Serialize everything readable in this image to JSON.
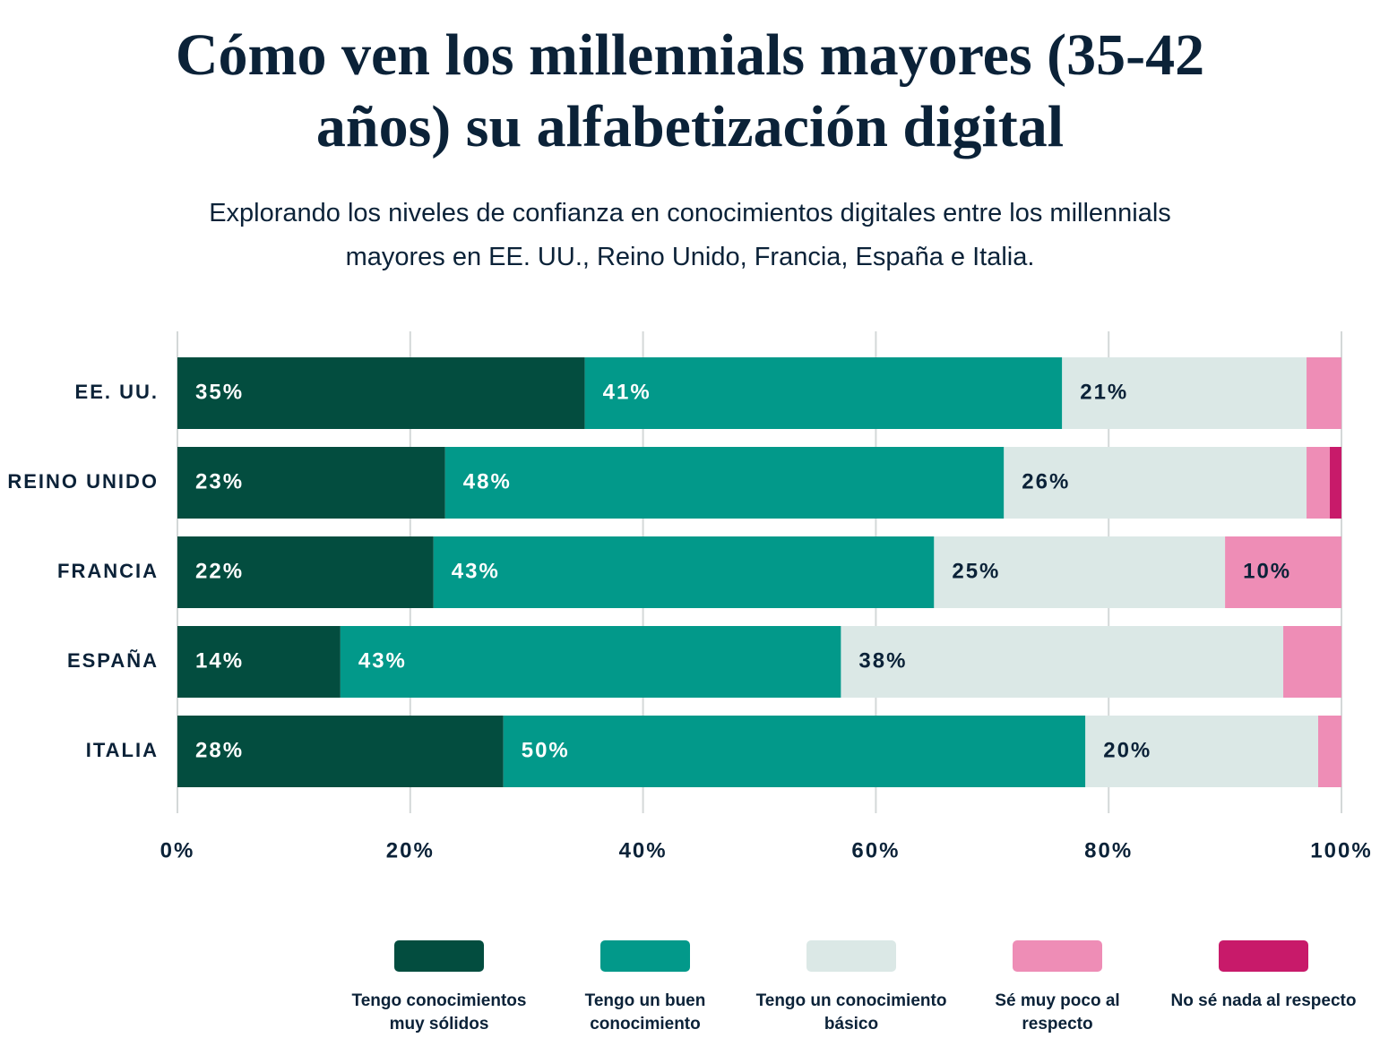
{
  "chart_data": {
    "type": "stacked-barh",
    "title": "Cómo ven los millennials mayores (35-42 años) su alfabetización digital",
    "subtitle": "Explorando los niveles de confianza en conocimientos digitales entre los millennials mayores en EE. UU., Reino Unido, Francia, España e Italia.",
    "categories": [
      "EE. UU.",
      "REINO UNIDO",
      "FRANCIA",
      "ESPAÑA",
      "ITALIA"
    ],
    "series": [
      {
        "name": "Tengo conocimientos muy sólidos",
        "color": "#034d3f",
        "values": [
          35,
          23,
          22,
          14,
          28
        ],
        "value_labels": [
          "35%",
          "23%",
          "22%",
          "14%",
          "28%"
        ]
      },
      {
        "name": "Tengo un buen conocimiento",
        "color": "#02998a",
        "values": [
          41,
          48,
          43,
          43,
          50
        ],
        "value_labels": [
          "41%",
          "48%",
          "43%",
          "43%",
          "50%"
        ]
      },
      {
        "name": "Tengo un conocimiento básico",
        "color": "#dbe8e6",
        "values": [
          21,
          26,
          25,
          38,
          20
        ],
        "value_labels": [
          "21%",
          "26%",
          "25%",
          "38%",
          "20%"
        ]
      },
      {
        "name": "Sé muy poco al respecto",
        "color": "#ee8db6",
        "values": [
          3,
          2,
          10,
          5,
          2
        ],
        "value_labels": [
          null,
          null,
          "10%",
          null,
          null
        ]
      },
      {
        "name": "No sé nada al respecto",
        "color": "#c81a6a",
        "values": [
          0,
          1,
          0,
          0,
          0
        ],
        "value_labels": [
          null,
          null,
          null,
          null,
          null
        ]
      }
    ],
    "xlim": [
      0,
      100
    ],
    "xticks": [
      {
        "value": 0,
        "label": "0%"
      },
      {
        "value": 20,
        "label": "20%"
      },
      {
        "value": 40,
        "label": "40%"
      },
      {
        "value": 60,
        "label": "60%"
      },
      {
        "value": 80,
        "label": "80%"
      },
      {
        "value": 100,
        "label": "100%"
      }
    ],
    "grid": true
  }
}
